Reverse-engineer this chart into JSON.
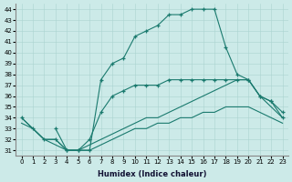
{
  "xlabel": "Humidex (Indice chaleur)",
  "xlim": [
    -0.5,
    23.5
  ],
  "ylim": [
    30.5,
    44.5
  ],
  "yticks": [
    31,
    32,
    33,
    34,
    35,
    36,
    37,
    38,
    39,
    40,
    41,
    42,
    43,
    44
  ],
  "xticks": [
    0,
    1,
    2,
    3,
    4,
    5,
    6,
    7,
    8,
    9,
    10,
    11,
    12,
    13,
    14,
    15,
    16,
    17,
    18,
    19,
    20,
    21,
    22,
    23
  ],
  "bg_color": "#cceae8",
  "grid_color": "#aad4d0",
  "line_color": "#1a7a6e",
  "lines": [
    {
      "x": [
        3,
        4,
        5,
        6,
        7,
        8,
        9,
        10,
        11,
        12,
        13,
        14,
        15,
        16,
        17,
        18,
        19,
        20,
        21,
        22,
        23
      ],
      "y": [
        33,
        31,
        31,
        31,
        37.5,
        39,
        39.5,
        41.5,
        42,
        42.5,
        43.5,
        43.5,
        44,
        44,
        44,
        40.5,
        38,
        37.5,
        36,
        35.5,
        34
      ],
      "has_markers": true
    },
    {
      "x": [
        0,
        1,
        2,
        3,
        4,
        5,
        6,
        7,
        8,
        9,
        10,
        11,
        12,
        13,
        14,
        15,
        16,
        17,
        18,
        19,
        20,
        21,
        22,
        23
      ],
      "y": [
        34,
        33,
        32,
        32,
        31,
        31,
        32,
        34.5,
        36,
        36.5,
        37,
        37,
        37,
        37.5,
        37.5,
        37.5,
        37.5,
        37.5,
        37.5,
        37.5,
        37.5,
        36,
        35.5,
        34.5
      ],
      "has_markers": true
    },
    {
      "x": [
        0,
        1,
        2,
        3,
        4,
        5,
        6,
        7,
        8,
        9,
        10,
        11,
        12,
        13,
        14,
        15,
        16,
        17,
        18,
        19,
        20,
        21,
        22,
        23
      ],
      "y": [
        34,
        33,
        32,
        32,
        31,
        31,
        31.5,
        32,
        32.5,
        33,
        33.5,
        34,
        34,
        34.5,
        35,
        35.5,
        36,
        36.5,
        37,
        37.5,
        37.5,
        36,
        35,
        34
      ],
      "has_markers": false
    },
    {
      "x": [
        0,
        1,
        2,
        3,
        4,
        5,
        6,
        7,
        8,
        9,
        10,
        11,
        12,
        13,
        14,
        15,
        16,
        17,
        18,
        19,
        20,
        21,
        22,
        23
      ],
      "y": [
        33.5,
        33,
        32,
        31.5,
        31,
        31,
        31,
        31.5,
        32,
        32.5,
        33,
        33,
        33.5,
        33.5,
        34,
        34,
        34.5,
        34.5,
        35,
        35,
        35,
        34.5,
        34,
        33.5
      ],
      "has_markers": false
    }
  ]
}
